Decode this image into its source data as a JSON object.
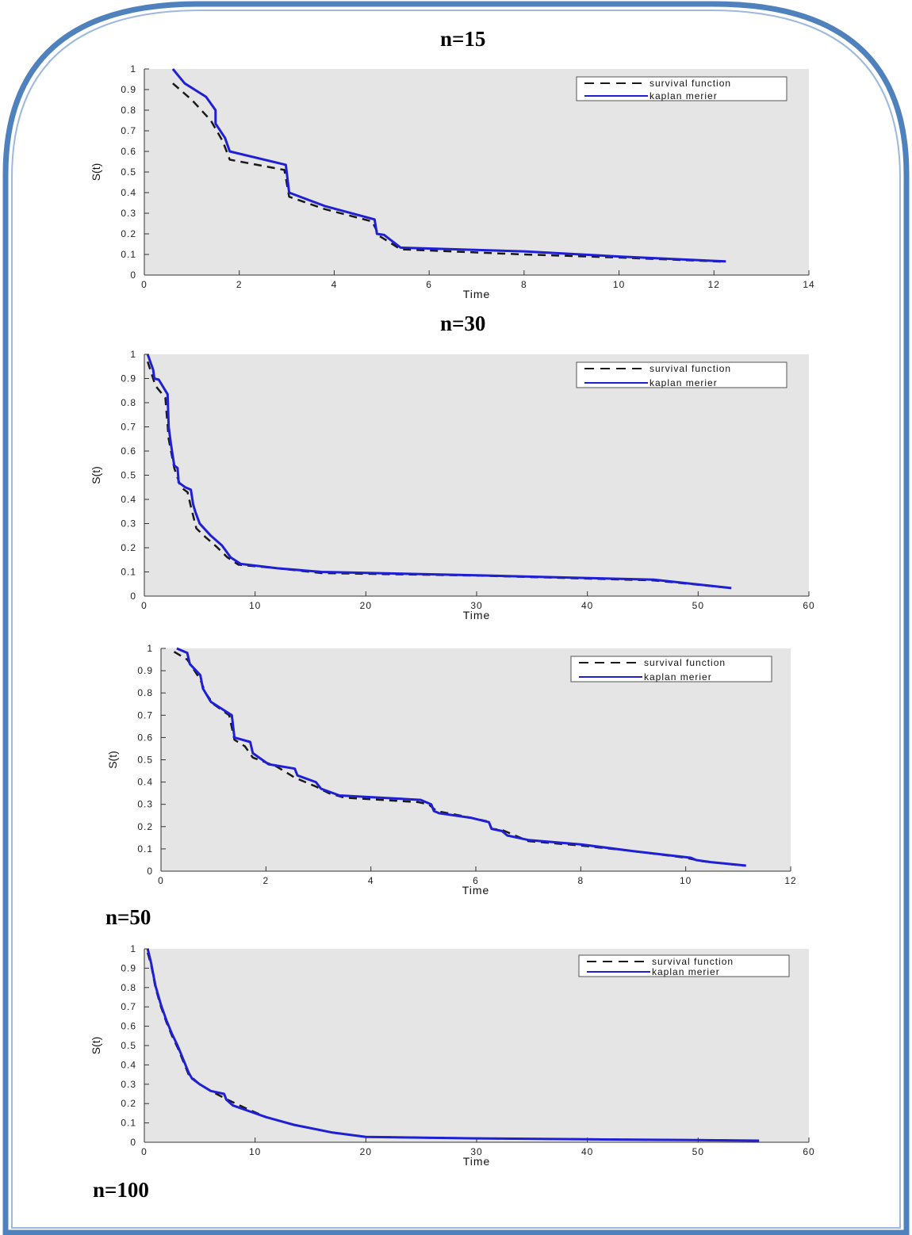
{
  "panel_titles": [
    "n=15",
    "n=30",
    "n=50",
    "n=100"
  ],
  "colors": {
    "border": "#4f81bd",
    "border_inner": "#9db9dd",
    "plot_bg": "#e5e5e5",
    "survival": "#1a1a1a",
    "km": "#1f1fd6"
  },
  "chart_data": [
    {
      "type": "line",
      "xlabel": "Time",
      "ylabel": "S(t)",
      "xlim": [
        0,
        14
      ],
      "ylim": [
        0,
        1
      ],
      "xticks": [
        0,
        2,
        4,
        6,
        8,
        10,
        12,
        14
      ],
      "yticks": [
        0,
        0.1,
        0.2,
        0.3,
        0.4,
        0.5,
        0.6,
        0.7,
        0.8,
        0.9,
        1
      ],
      "legend_position": "top-right",
      "series": [
        {
          "name": "survival function",
          "style": "dashed",
          "x": [
            0.6,
            1.0,
            1.4,
            1.65,
            1.8,
            2.95,
            3.05,
            3.8,
            4.8,
            4.95,
            5.4,
            8.0,
            10.0,
            12.2
          ],
          "y": [
            0.93,
            0.85,
            0.75,
            0.65,
            0.56,
            0.51,
            0.38,
            0.32,
            0.26,
            0.19,
            0.125,
            0.1,
            0.085,
            0.065
          ]
        },
        {
          "name": "kaplan merier",
          "style": "solid",
          "x": [
            0.6,
            0.85,
            1.3,
            1.5,
            1.5,
            1.7,
            1.8,
            2.98,
            3.05,
            3.8,
            4.85,
            4.9,
            5.05,
            5.4,
            8.0,
            10.0,
            12.25
          ],
          "y": [
            1.0,
            0.93,
            0.865,
            0.8,
            0.735,
            0.665,
            0.6,
            0.535,
            0.4,
            0.335,
            0.27,
            0.2,
            0.195,
            0.133,
            0.115,
            0.09,
            0.066
          ]
        }
      ]
    },
    {
      "type": "line",
      "xlabel": "Time",
      "ylabel": "S(t)",
      "xlim": [
        0,
        60
      ],
      "ylim": [
        0,
        1
      ],
      "xticks": [
        0,
        10,
        20,
        30,
        40,
        50,
        60
      ],
      "yticks": [
        0,
        0.1,
        0.2,
        0.3,
        0.4,
        0.5,
        0.6,
        0.7,
        0.8,
        0.9,
        1
      ],
      "legend_position": "top-right",
      "series": [
        {
          "name": "survival function",
          "style": "dashed",
          "x": [
            0.3,
            1.0,
            1.9,
            2.2,
            2.7,
            3.3,
            3.9,
            4.2,
            4.7,
            5.5,
            6.5,
            7.5,
            8.5,
            12,
            16,
            30,
            46,
            53
          ],
          "y": [
            0.97,
            0.87,
            0.82,
            0.65,
            0.53,
            0.45,
            0.43,
            0.37,
            0.28,
            0.245,
            0.205,
            0.16,
            0.13,
            0.115,
            0.095,
            0.085,
            0.065,
            0.033
          ]
        },
        {
          "name": "kaplan merier",
          "style": "solid",
          "x": [
            0.3,
            0.8,
            0.9,
            1.3,
            2.1,
            2.2,
            2.4,
            2.7,
            3.0,
            3.1,
            3.7,
            4.2,
            4.4,
            4.6,
            5.0,
            6.0,
            7.0,
            7.8,
            8.7,
            12,
            16,
            30,
            46,
            53
          ],
          "y": [
            1.0,
            0.935,
            0.9,
            0.895,
            0.835,
            0.7,
            0.63,
            0.54,
            0.53,
            0.47,
            0.45,
            0.44,
            0.38,
            0.35,
            0.3,
            0.25,
            0.21,
            0.16,
            0.133,
            0.115,
            0.1,
            0.086,
            0.068,
            0.033
          ]
        }
      ]
    },
    {
      "type": "line",
      "xlabel": "Time",
      "ylabel": "S(t)",
      "xlim": [
        0,
        12
      ],
      "ylim": [
        0,
        1
      ],
      "xticks": [
        0,
        2,
        4,
        6,
        8,
        10,
        12
      ],
      "yticks": [
        0,
        0.1,
        0.2,
        0.3,
        0.4,
        0.5,
        0.6,
        0.7,
        0.8,
        0.9,
        1
      ],
      "legend_position": "top-right",
      "series": [
        {
          "name": "survival function",
          "style": "dashed",
          "x": [
            0.25,
            0.5,
            0.75,
            0.85,
            1.0,
            1.3,
            1.4,
            1.6,
            1.75,
            2.2,
            2.55,
            2.95,
            3.2,
            3.5,
            4.9,
            5.1,
            5.25,
            5.7,
            6.2,
            6.3,
            6.5,
            7.0,
            8.0,
            9.0,
            10.0,
            10.3,
            11.1
          ],
          "y": [
            0.985,
            0.95,
            0.86,
            0.8,
            0.75,
            0.7,
            0.59,
            0.56,
            0.51,
            0.47,
            0.42,
            0.38,
            0.35,
            0.33,
            0.31,
            0.3,
            0.27,
            0.25,
            0.225,
            0.19,
            0.185,
            0.135,
            0.115,
            0.09,
            0.06,
            0.045,
            0.025
          ]
        },
        {
          "name": "kaplan merier",
          "style": "solid",
          "x": [
            0.3,
            0.5,
            0.55,
            0.75,
            0.8,
            0.95,
            1.35,
            1.4,
            1.7,
            1.75,
            2.05,
            2.55,
            2.6,
            2.95,
            3.05,
            3.4,
            4.95,
            5.15,
            5.2,
            5.3,
            5.9,
            6.25,
            6.3,
            6.5,
            6.6,
            7.0,
            8.0,
            9.0,
            10.1,
            10.2,
            10.5,
            11.15
          ],
          "y": [
            1.0,
            0.98,
            0.93,
            0.88,
            0.82,
            0.76,
            0.7,
            0.6,
            0.58,
            0.53,
            0.48,
            0.46,
            0.43,
            0.4,
            0.37,
            0.34,
            0.32,
            0.3,
            0.27,
            0.26,
            0.24,
            0.22,
            0.19,
            0.18,
            0.16,
            0.14,
            0.12,
            0.09,
            0.06,
            0.05,
            0.04,
            0.025
          ]
        }
      ]
    },
    {
      "type": "line",
      "xlabel": "Time",
      "ylabel": "S(t)",
      "xlim": [
        0,
        60
      ],
      "ylim": [
        0,
        1
      ],
      "xticks": [
        0,
        10,
        20,
        30,
        40,
        50,
        60
      ],
      "yticks": [
        0,
        0.1,
        0.2,
        0.3,
        0.4,
        0.5,
        0.6,
        0.7,
        0.8,
        0.9,
        1
      ],
      "legend_position": "top-right",
      "series": [
        {
          "name": "survival function",
          "style": "dashed",
          "x": [
            0.3,
            0.6,
            1.0,
            1.5,
            2.0,
            2.5,
            3.0,
            3.5,
            4.0,
            5.0,
            6.0,
            7.5,
            9.0,
            11.0,
            13.5,
            17.0,
            20.0,
            30.0,
            40.0,
            50.0,
            55.5
          ],
          "y": [
            0.98,
            0.92,
            0.8,
            0.7,
            0.62,
            0.55,
            0.49,
            0.42,
            0.35,
            0.3,
            0.265,
            0.22,
            0.18,
            0.13,
            0.09,
            0.05,
            0.028,
            0.02,
            0.015,
            0.011,
            0.008
          ]
        },
        {
          "name": "kaplan merier",
          "style": "solid",
          "x": [
            0.3,
            0.6,
            1.0,
            1.5,
            2.0,
            2.5,
            3.0,
            3.5,
            4.0,
            4.3,
            5.0,
            6.0,
            7.2,
            7.4,
            8.0,
            9.5,
            11.0,
            13.5,
            17.0,
            20.0,
            30.0,
            40.0,
            50.0,
            55.5
          ],
          "y": [
            1.0,
            0.93,
            0.81,
            0.71,
            0.63,
            0.56,
            0.5,
            0.43,
            0.36,
            0.33,
            0.3,
            0.265,
            0.25,
            0.22,
            0.19,
            0.16,
            0.13,
            0.09,
            0.05,
            0.028,
            0.02,
            0.015,
            0.011,
            0.008
          ]
        }
      ]
    }
  ]
}
